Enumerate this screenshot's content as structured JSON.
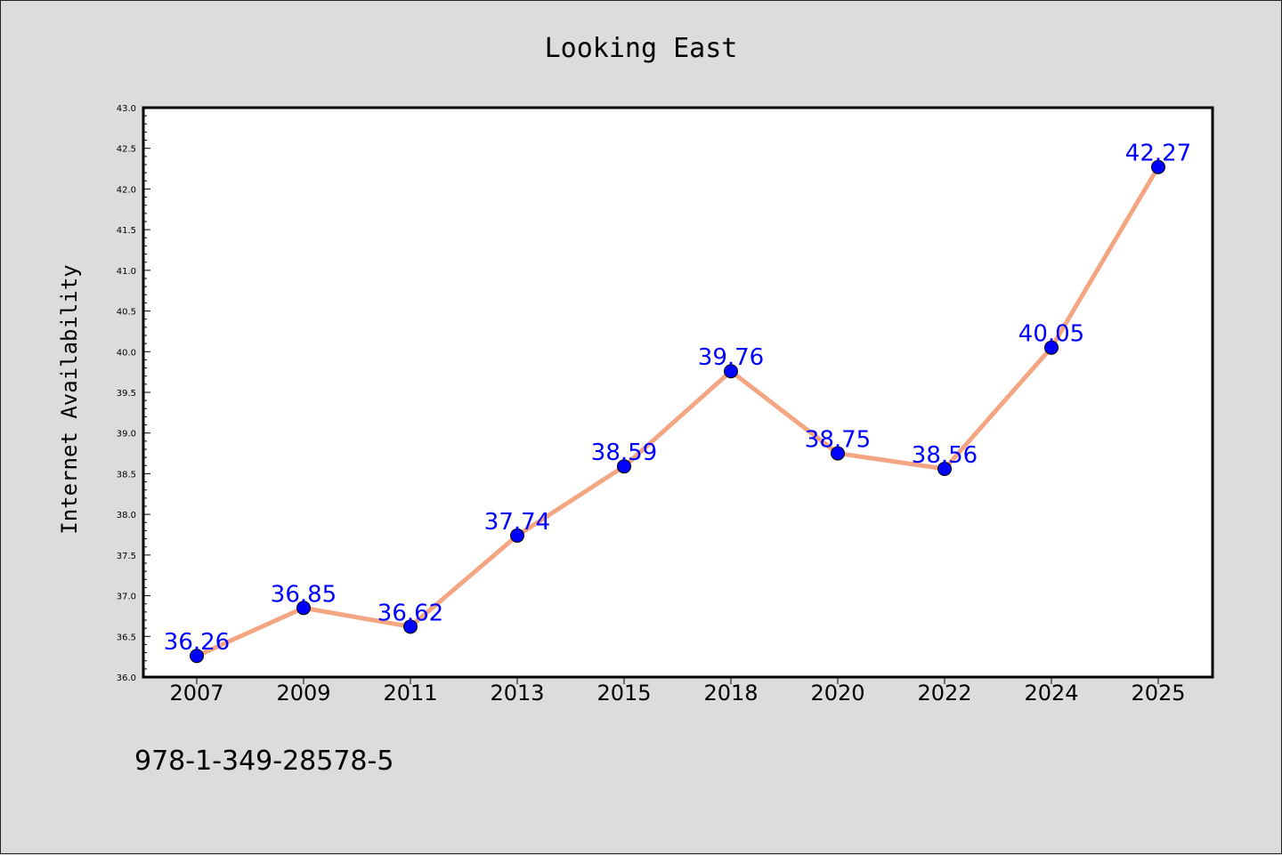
{
  "chart_data": {
    "type": "line",
    "title": "Looking East",
    "xlabel": "",
    "ylabel": "Internet Availability",
    "categories": [
      "2007",
      "2009",
      "2011",
      "2013",
      "2015",
      "2018",
      "2020",
      "2022",
      "2024",
      "2025"
    ],
    "series": [
      {
        "values": [
          36.26,
          36.85,
          36.62,
          37.74,
          38.59,
          39.76,
          38.75,
          38.56,
          40.05,
          42.27
        ],
        "data_labels": [
          "36.26",
          "36.85",
          "36.62",
          "37.74",
          "38.59",
          "39.76",
          "38.75",
          "38.56",
          "40.05",
          "42.27"
        ]
      }
    ],
    "ylim": [
      36.0,
      43.0
    ],
    "yticks": [
      "36.0",
      "36.5",
      "37.0",
      "37.5",
      "38.0",
      "38.5",
      "39.0",
      "39.5",
      "40.0",
      "40.5",
      "41.0",
      "41.5",
      "42.0",
      "42.5",
      "43.0"
    ],
    "grid": false,
    "colors": {
      "line": "#f4a582",
      "marker": "#0000ff",
      "label": "#0000ff",
      "background": "#dcdcdc",
      "plot_area": "#ffffff"
    }
  },
  "footer": {
    "text": "978-1-349-28578-5"
  }
}
